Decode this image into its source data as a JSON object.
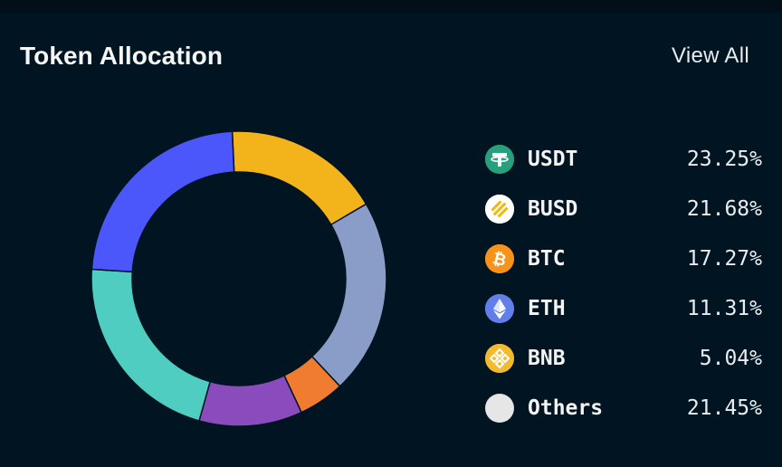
{
  "header": {
    "title": "Token Allocation",
    "view_all": "View All"
  },
  "chart_data": {
    "type": "pie",
    "variant": "donut",
    "title": "Token Allocation",
    "categories": [
      "USDT",
      "BUSD",
      "BTC",
      "ETH",
      "BNB",
      "Others"
    ],
    "values": [
      23.25,
      21.68,
      17.27,
      11.31,
      5.04,
      21.45
    ],
    "labels": [
      "23.25%",
      "21.68%",
      "17.27%",
      "11.31%",
      "5.04%",
      "21.45%"
    ],
    "unit": "%",
    "legend_position": "right",
    "slice_order_clockwise_from_top": [
      "BTC",
      "Others",
      "BNB",
      "ETH",
      "BUSD",
      "USDT"
    ]
  },
  "legend": {
    "items": [
      {
        "name": "USDT",
        "pct": "23.25%",
        "icon": "usdt-icon",
        "color": "#4b57fa",
        "icon_bg": "#26a17b"
      },
      {
        "name": "BUSD",
        "pct": "21.68%",
        "icon": "busd-icon",
        "color": "#4ecdc0",
        "icon_bg": "#ffffff"
      },
      {
        "name": "BTC",
        "pct": "17.27%",
        "icon": "btc-icon",
        "color": "#f3b31b",
        "icon_bg": "#f7931a"
      },
      {
        "name": "ETH",
        "pct": "11.31%",
        "icon": "eth-icon",
        "color": "#8a4bbc",
        "icon_bg": "#627eea"
      },
      {
        "name": "BNB",
        "pct": "5.04%",
        "icon": "bnb-icon",
        "color": "#f07d2f",
        "icon_bg": "#f3ba2f"
      },
      {
        "name": "Others",
        "pct": "21.45%",
        "icon": "others-icon",
        "color": "#8a9dc8",
        "icon_bg": "#e6e6e6"
      }
    ]
  }
}
